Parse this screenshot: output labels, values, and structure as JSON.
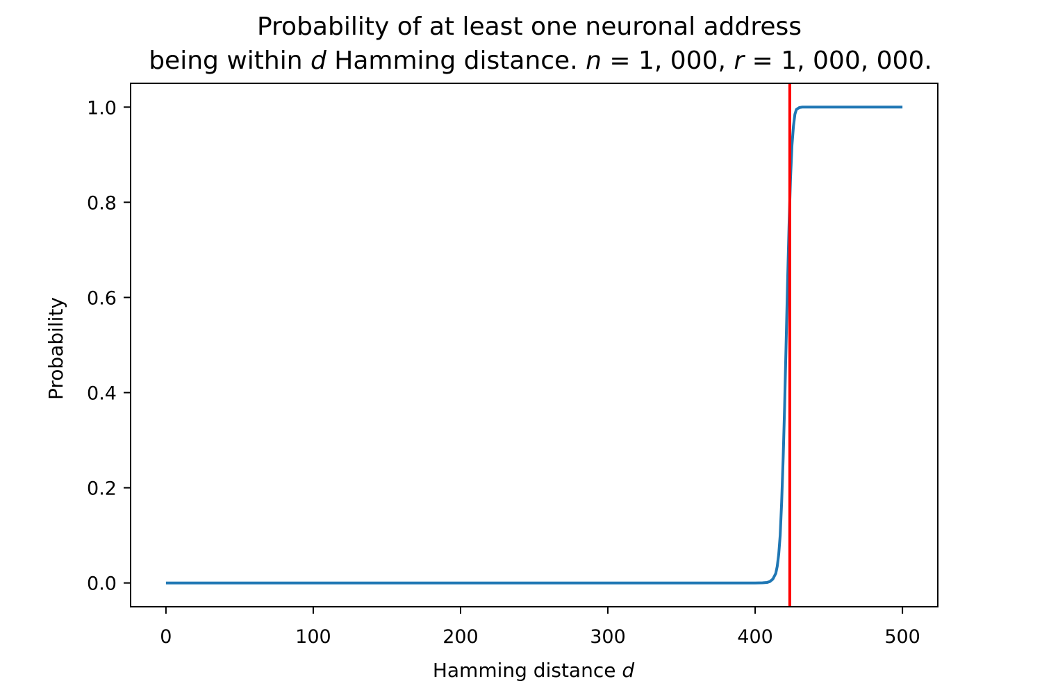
{
  "chart_data": {
    "type": "line",
    "title": {
      "line1": "Probability of at least one neuronal address",
      "line2_pre": "being within ",
      "line2_var_d": "d",
      "line2_mid": " Hamming distance. ",
      "line2_var_n": "n",
      "line2_n_value": " = 1, 000, ",
      "line2_var_r": "r",
      "line2_r_value": " = 1, 000, 000."
    },
    "xlabel": {
      "text": "Hamming distance ",
      "var": "d"
    },
    "ylabel": "Probability",
    "xlim": [
      -24,
      524
    ],
    "ylim": [
      -0.05,
      1.05
    ],
    "xticks": [
      0,
      100,
      200,
      300,
      400,
      500
    ],
    "xtick_labels": [
      "0",
      "100",
      "200",
      "300",
      "400",
      "500"
    ],
    "yticks": [
      0.0,
      0.2,
      0.4,
      0.6,
      0.8,
      1.0
    ],
    "ytick_labels": [
      "0.0",
      "0.2",
      "0.4",
      "0.6",
      "0.8",
      "1.0"
    ],
    "grid": false,
    "series": [
      {
        "color": "#1f77b4",
        "points": [
          [
            0,
            0
          ],
          [
            100,
            0
          ],
          [
            200,
            0
          ],
          [
            300,
            0
          ],
          [
            400,
            0
          ],
          [
            405,
            0.0003
          ],
          [
            408,
            0.001
          ],
          [
            410,
            0.003
          ],
          [
            412,
            0.008
          ],
          [
            414,
            0.02
          ],
          [
            415,
            0.035
          ],
          [
            416,
            0.06
          ],
          [
            417,
            0.1
          ],
          [
            418,
            0.17
          ],
          [
            419,
            0.26
          ],
          [
            420,
            0.37
          ],
          [
            421,
            0.5
          ],
          [
            422,
            0.63
          ],
          [
            423,
            0.75
          ],
          [
            424,
            0.85
          ],
          [
            425,
            0.92
          ],
          [
            426,
            0.96
          ],
          [
            427,
            0.985
          ],
          [
            428,
            0.995
          ],
          [
            430,
            0.999
          ],
          [
            432,
            1.0
          ],
          [
            450,
            1.0
          ],
          [
            500,
            1.0
          ]
        ]
      }
    ],
    "vline": {
      "x": 423.5,
      "color": "#ff0000"
    }
  }
}
